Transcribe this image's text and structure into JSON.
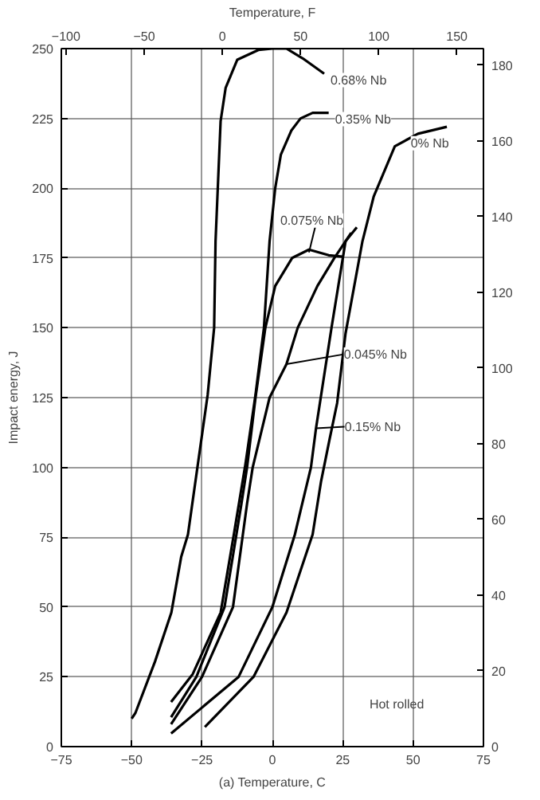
{
  "chart_data": {
    "type": "line",
    "xlabel": "(a) Temperature, C",
    "ylabel": "Impact energy, J",
    "x2label": "Temperature, F",
    "xlim": [
      -75,
      75
    ],
    "xticks": [
      -75,
      -50,
      -25,
      0,
      25,
      50,
      75
    ],
    "ylim": [
      0,
      250
    ],
    "yticks": [
      0,
      25,
      50,
      75,
      100,
      125,
      150,
      175,
      200,
      225,
      250
    ],
    "x2lim": [
      -103,
      167
    ],
    "x2ticks": [
      -100,
      -50,
      0,
      50,
      100,
      150
    ],
    "y2lim": [
      0,
      184.4
    ],
    "y2ticks": [
      0,
      20,
      40,
      60,
      80,
      100,
      120,
      140,
      160,
      180
    ],
    "grid": true,
    "marker": "none",
    "line_style": "solid",
    "series": [
      {
        "color": "#000000",
        "x": [
          -50,
          -48.7,
          -41.7,
          -35.9,
          -32.4,
          -30,
          -26.5,
          -23,
          -20.7,
          -20.2,
          -18.4,
          -16.6,
          -12.5,
          -5,
          0,
          5,
          10.8,
          18.4
        ],
        "values": [
          10,
          12,
          30.5,
          48,
          68,
          76,
          101,
          126,
          150,
          181,
          224,
          236,
          246,
          249.5,
          250,
          250,
          246.5,
          241
        ]
      },
      {
        "color": "#000000",
        "x": [
          -36,
          -28.3,
          -18.4,
          -13.7,
          -9.6,
          -6,
          -3,
          -1,
          1,
          3,
          6.7,
          10,
          14.3,
          20
        ],
        "values": [
          16,
          26,
          48,
          76,
          101,
          126,
          150,
          181,
          200,
          212,
          220.6,
          225,
          227,
          227
        ]
      },
      {
        "color": "#000000",
        "x": [
          -36,
          -27,
          -17,
          -11,
          -9,
          -6,
          -2.5,
          1,
          7,
          13,
          20,
          25
        ],
        "values": [
          10.5,
          25,
          50,
          87,
          100,
          125,
          150,
          165,
          175,
          178,
          176,
          175.5
        ]
      },
      {
        "color": "#000000",
        "x": [
          -36,
          -25,
          -14,
          -9,
          -7,
          -1,
          5,
          9,
          16,
          22,
          28
        ],
        "values": [
          8,
          25,
          50,
          87,
          100,
          125,
          137,
          150,
          165,
          175,
          184
        ]
      },
      {
        "color": "#000000",
        "x": [
          -36,
          -12,
          0,
          8,
          10.6,
          13.7,
          15.5,
          21,
          26,
          30
        ],
        "values": [
          4.7,
          25,
          50,
          76,
          87,
          100,
          114,
          150,
          181,
          186
        ]
      },
      {
        "color": "#000000",
        "x": [
          -24,
          -6.7,
          5,
          14.3,
          17.3,
          20.3,
          23,
          26,
          32,
          36,
          43.5,
          51.7,
          62
        ],
        "values": [
          7,
          25,
          48,
          76,
          95,
          110,
          123,
          148,
          181,
          197,
          215,
          219.5,
          222
        ]
      }
    ],
    "annotations": [
      {
        "text": "0.68% Nb",
        "x": 18.4,
        "y": 241
      },
      {
        "text": "0.35% Nb",
        "x": 20,
        "y": 227
      },
      {
        "text": "0% Nb",
        "x": 43.5,
        "y": 215
      },
      {
        "text": "0.075% Nb",
        "x": 13,
        "y": 177
      },
      {
        "text": "0.045% Nb",
        "x": 5,
        "y": 137
      },
      {
        "text": "0.15% Nb",
        "x": 15.5,
        "y": 114
      },
      "Hot rolled"
    ]
  }
}
